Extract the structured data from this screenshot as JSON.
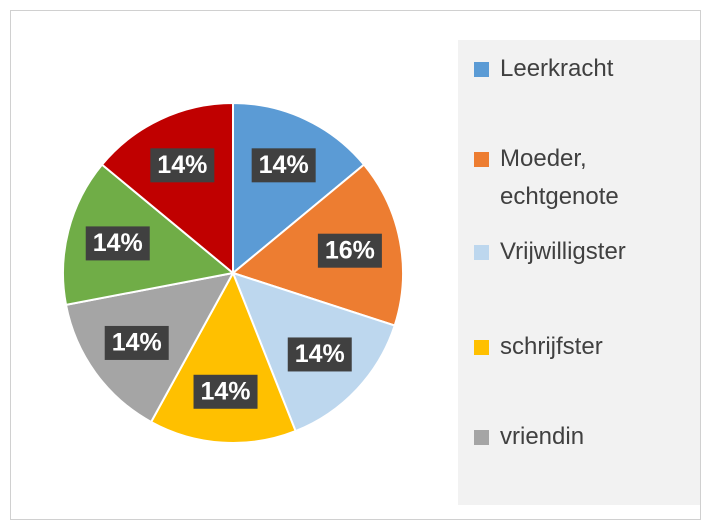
{
  "chart_data": {
    "type": "pie",
    "categories": [
      "Leerkracht",
      "Moeder, echtgenote",
      "Vrijwilligster",
      "schrijfster",
      "vriendin",
      null,
      null
    ],
    "values": [
      14,
      16,
      14,
      14,
      14,
      14,
      14
    ],
    "value_labels": [
      "14%",
      "16%",
      "14%",
      "14%",
      "14%",
      "14%",
      "14%"
    ],
    "colors": [
      "#5b9bd5",
      "#ed7d31",
      "#bdd7ee",
      "#ffc000",
      "#a5a5a5",
      "#70ad47",
      "#c00000"
    ],
    "legend": "right"
  }
}
